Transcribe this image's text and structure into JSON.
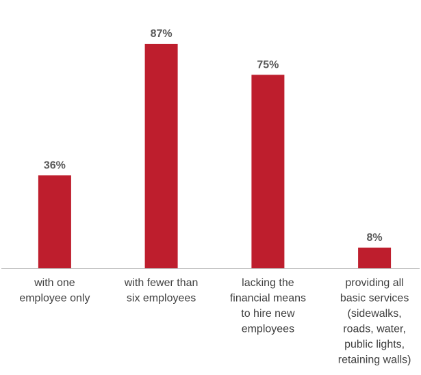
{
  "chart_data": {
    "type": "bar",
    "categories": [
      [
        "with one",
        "employee only"
      ],
      [
        "with fewer than",
        "six employees"
      ],
      [
        "lacking the",
        "financial means",
        "to hire new",
        "employees"
      ],
      [
        "providing all",
        "basic services",
        "(sidewalks,",
        "roads, water,",
        "public lights,",
        "retaining walls)"
      ]
    ],
    "values": [
      36,
      87,
      75,
      8
    ],
    "value_labels": [
      "36%",
      "87%",
      "75%",
      "8%"
    ],
    "ylim": [
      0,
      100
    ],
    "unit": "%",
    "title": "",
    "xlabel": "",
    "ylabel": "",
    "grid": false,
    "colors": {
      "bar": "#be1e2d",
      "axis": "#bfbfbf",
      "value_text": "#595959",
      "category_text": "#404040"
    }
  }
}
